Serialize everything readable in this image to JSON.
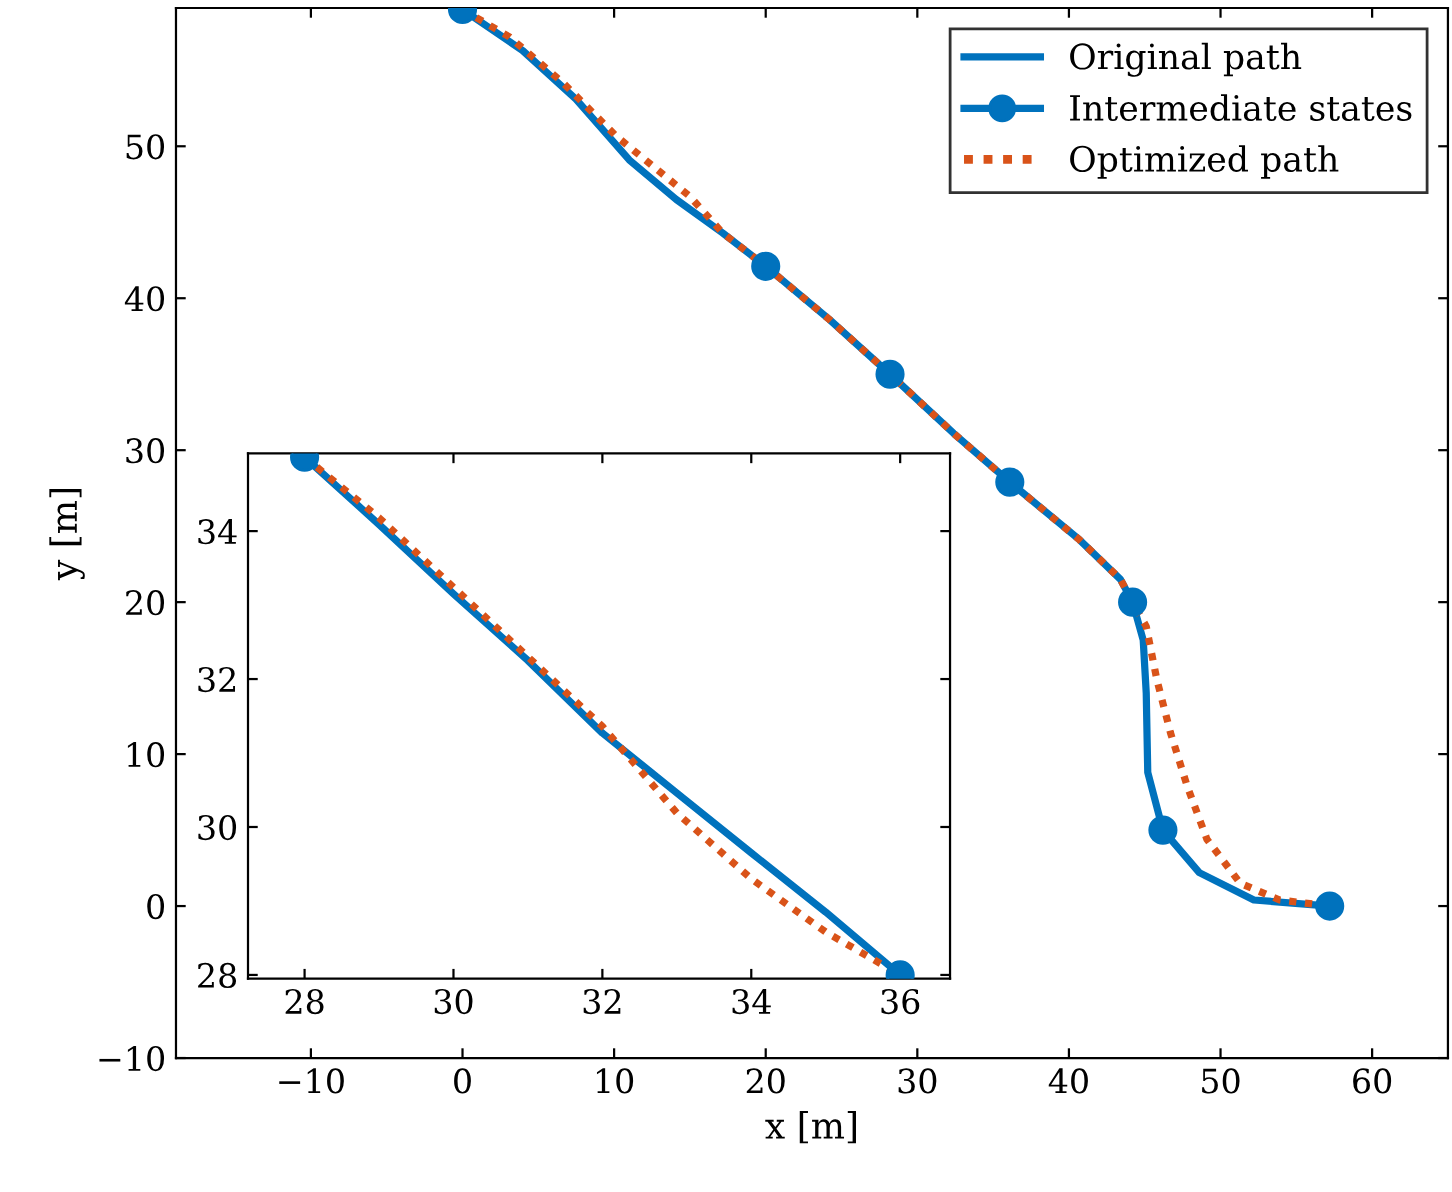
{
  "chart_data": [
    {
      "type": "line",
      "xlabel": "x [m]",
      "ylabel": "y [m]",
      "xlim": [
        -18.9,
        65
      ],
      "ylim": [
        -10,
        59.1
      ],
      "xticks": [
        {
          "value": -10,
          "label": "−10"
        },
        0,
        10,
        20,
        30,
        40,
        50,
        60
      ],
      "yticks": [
        {
          "value": -10,
          "label": "−10"
        },
        0,
        10,
        20,
        30,
        40,
        50
      ],
      "grid": false,
      "legend": "top right",
      "series": [
        {
          "name": "Original path",
          "color": "#0072bd",
          "line_style": "solid",
          "marker": "none",
          "x": [
            0,
            3.96,
            7.48,
            11.0,
            14.1,
            17.15,
            20.0,
            24.2,
            28.2,
            32.4,
            36.1,
            40.7,
            43.4,
            44.2,
            44.9,
            45.1,
            45.2,
            46.2,
            48.6,
            52.2,
            57.2
          ],
          "values": [
            59.0,
            56.3,
            53.1,
            49.1,
            46.5,
            44.3,
            42.1,
            38.6,
            35.0,
            31.1,
            27.9,
            24.1,
            21.5,
            20.0,
            17.5,
            14.0,
            8.8,
            5.0,
            2.2,
            0.4,
            0
          ]
        },
        {
          "name": "Intermediate states",
          "type": "scatter",
          "color": "#0072bd",
          "marker": "circle",
          "x": [
            0,
            20.0,
            28.2,
            36.1,
            44.2,
            46.2,
            57.2
          ],
          "values": [
            59.0,
            42.1,
            35.0,
            27.9,
            20.0,
            5.0,
            0
          ]
        },
        {
          "name": "Optimized path",
          "color": "#d95319",
          "line_style": "dotted",
          "marker": "none",
          "x": [
            0,
            3.09,
            6.6,
            10.1,
            15.0,
            17.15,
            20.0,
            24.2,
            28.2,
            32.4,
            36.1,
            40.7,
            43.4,
            44.2,
            45.1,
            45.8,
            46.7,
            47.8,
            49.1,
            51.3,
            53.9,
            57.2
          ],
          "values": [
            59.0,
            57.2,
            54.2,
            50.7,
            46.7,
            44.3,
            42.1,
            38.6,
            35.0,
            31.1,
            27.9,
            24.1,
            21.5,
            20.0,
            18.4,
            14.9,
            11.4,
            7.9,
            4.4,
            1.5,
            0.4,
            0
          ]
        }
      ]
    },
    {
      "type": "line",
      "xlim": [
        27.24,
        36.67
      ],
      "ylim": [
        27.95,
        35.05
      ],
      "xticks": [
        28,
        30,
        32,
        34,
        36
      ],
      "yticks": [
        28,
        30,
        32,
        34
      ],
      "grid": false,
      "series": [
        {
          "color": "#0072bd",
          "line_style": "solid",
          "marker": "none",
          "x": [
            28,
            29.0,
            30.0,
            31.0,
            32.0,
            33.0,
            34.0,
            35.0,
            36
          ],
          "values": [
            35.0,
            34.09,
            33.15,
            32.25,
            31.27,
            30.46,
            29.65,
            28.85,
            28.0
          ]
        },
        {
          "type": "scatter",
          "color": "#0072bd",
          "marker": "circle",
          "x": [
            28,
            36
          ],
          "values": [
            35.0,
            28.0
          ]
        },
        {
          "color": "#d95319",
          "line_style": "dotted",
          "marker": "none",
          "x": [
            28,
            29.0,
            30.0,
            31.0,
            32.0,
            33.0,
            34.0,
            35.0,
            36
          ],
          "values": [
            35.0,
            34.18,
            33.24,
            32.3,
            31.36,
            30.19,
            29.3,
            28.58,
            28.0
          ]
        }
      ]
    }
  ]
}
